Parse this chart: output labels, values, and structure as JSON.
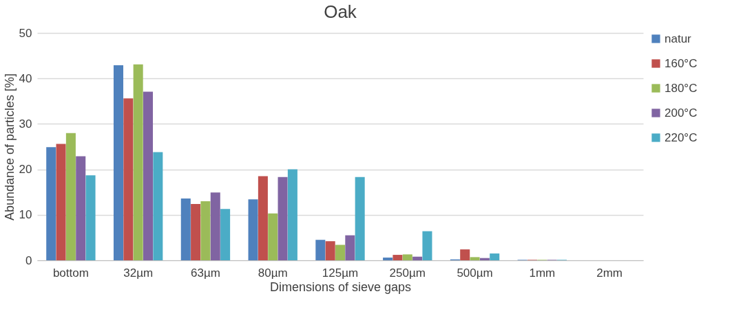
{
  "chart_data": {
    "type": "bar",
    "title": "Oak",
    "xlabel": "Dimensions of sieve gaps",
    "ylabel": "Abundance of particles [%]",
    "categories": [
      "bottom",
      "32µm",
      "63µm",
      "80µm",
      "125µm",
      "250µm",
      "500µm",
      "1mm",
      "2mm"
    ],
    "series": [
      {
        "name": "natur",
        "color": "#4f81bd",
        "values": [
          24.9,
          42.9,
          13.6,
          13.4,
          4.5,
          0.6,
          0.2,
          0.1,
          0
        ]
      },
      {
        "name": "160°C",
        "color": "#c0504d",
        "values": [
          25.6,
          35.6,
          12.4,
          18.5,
          4.2,
          1.2,
          2.4,
          0.1,
          0
        ]
      },
      {
        "name": "180°C",
        "color": "#9bbb59",
        "values": [
          28.0,
          43.1,
          13.0,
          10.3,
          3.4,
          1.3,
          0.7,
          0.1,
          0
        ]
      },
      {
        "name": "200°C",
        "color": "#8064a2",
        "values": [
          22.9,
          37.1,
          14.9,
          18.3,
          5.5,
          0.8,
          0.5,
          0.1,
          0
        ]
      },
      {
        "name": "220°C",
        "color": "#4bacc6",
        "values": [
          18.7,
          23.8,
          11.3,
          20.0,
          18.3,
          6.4,
          1.5,
          0.1,
          0
        ]
      }
    ],
    "ylim": [
      0,
      50
    ],
    "yticks": [
      0,
      10,
      20,
      30,
      40,
      50
    ],
    "grid": "y",
    "legend": "right"
  }
}
